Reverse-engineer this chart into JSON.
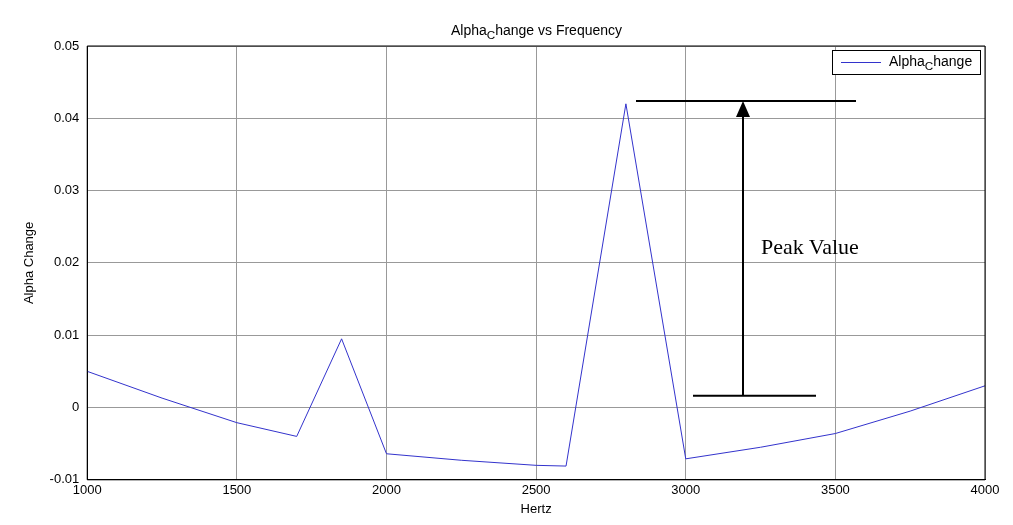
{
  "chart_data": {
    "type": "line",
    "title": "Alpha$_{C}$hange vs Frequency",
    "xlabel": "Hertz",
    "ylabel": "Alpha Change",
    "series": [
      {
        "name": "Alpha$_{C}$hange",
        "color": "#3333cc",
        "x": [
          1000,
          1250,
          1500,
          1700,
          1850,
          2000,
          2250,
          2500,
          2600,
          2800,
          3000,
          3250,
          3500,
          3750,
          4000
        ],
        "values": [
          0.005,
          0.0013,
          -0.0021,
          -0.004,
          0.0095,
          -0.0064,
          -0.0073,
          -0.008,
          -0.0081,
          0.042,
          -0.0071,
          -0.0055,
          -0.0036,
          -0.0005,
          0.003
        ]
      }
    ],
    "xlim": [
      1000,
      4000
    ],
    "xticks": [
      1000,
      1500,
      2000,
      2500,
      3000,
      3500,
      4000
    ],
    "ylim": [
      -0.01,
      0.05
    ],
    "yticks": [
      -0.01,
      0,
      0.01,
      0.02,
      0.03,
      0.04,
      0.05
    ],
    "grid": true,
    "legend": "top right",
    "marker": "none",
    "line_style": "solid",
    "annotations": [
      "Peak Value"
    ]
  }
}
